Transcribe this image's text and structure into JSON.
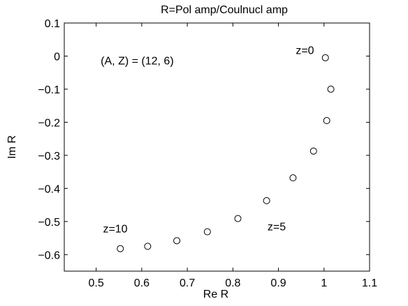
{
  "chart_data": {
    "type": "scatter",
    "title": "R=Pol amp/Coulnucl amp",
    "xlabel": "Re R",
    "ylabel": "Im R",
    "xlim": [
      0.43,
      1.1
    ],
    "ylim": [
      -0.65,
      0.1
    ],
    "xticks": [
      0.5,
      0.6,
      0.7,
      0.8,
      0.9,
      1,
      1.1
    ],
    "xtick_labels": [
      "0.5",
      "0.6",
      "0.7",
      "0.8",
      "0.9",
      "1",
      "1.1"
    ],
    "yticks": [
      0.1,
      0,
      -0.1,
      -0.2,
      -0.3,
      -0.4,
      -0.5,
      -0.6
    ],
    "ytick_labels": [
      "0.1",
      "0",
      "−0.1",
      "−0.2",
      "−0.3",
      "−0.4",
      "−0.5",
      "−0.6"
    ],
    "grid": false,
    "marker": "open-circle",
    "points": [
      {
        "x": 1.003,
        "y": -0.005
      },
      {
        "x": 1.015,
        "y": -0.1
      },
      {
        "x": 1.006,
        "y": -0.195
      },
      {
        "x": 0.977,
        "y": -0.287
      },
      {
        "x": 0.932,
        "y": -0.368
      },
      {
        "x": 0.874,
        "y": -0.437
      },
      {
        "x": 0.811,
        "y": -0.491
      },
      {
        "x": 0.744,
        "y": -0.531
      },
      {
        "x": 0.677,
        "y": -0.558
      },
      {
        "x": 0.613,
        "y": -0.575
      },
      {
        "x": 0.553,
        "y": -0.582
      }
    ],
    "annotations": [
      {
        "text": "(A, Z) = (12, 6)",
        "x": 0.51,
        "y": -0.025
      },
      {
        "text": "z=0",
        "x": 0.938,
        "y": 0.006
      },
      {
        "text": "z=5",
        "x": 0.876,
        "y": -0.527
      },
      {
        "text": "z=10",
        "x": 0.515,
        "y": -0.533
      }
    ]
  }
}
